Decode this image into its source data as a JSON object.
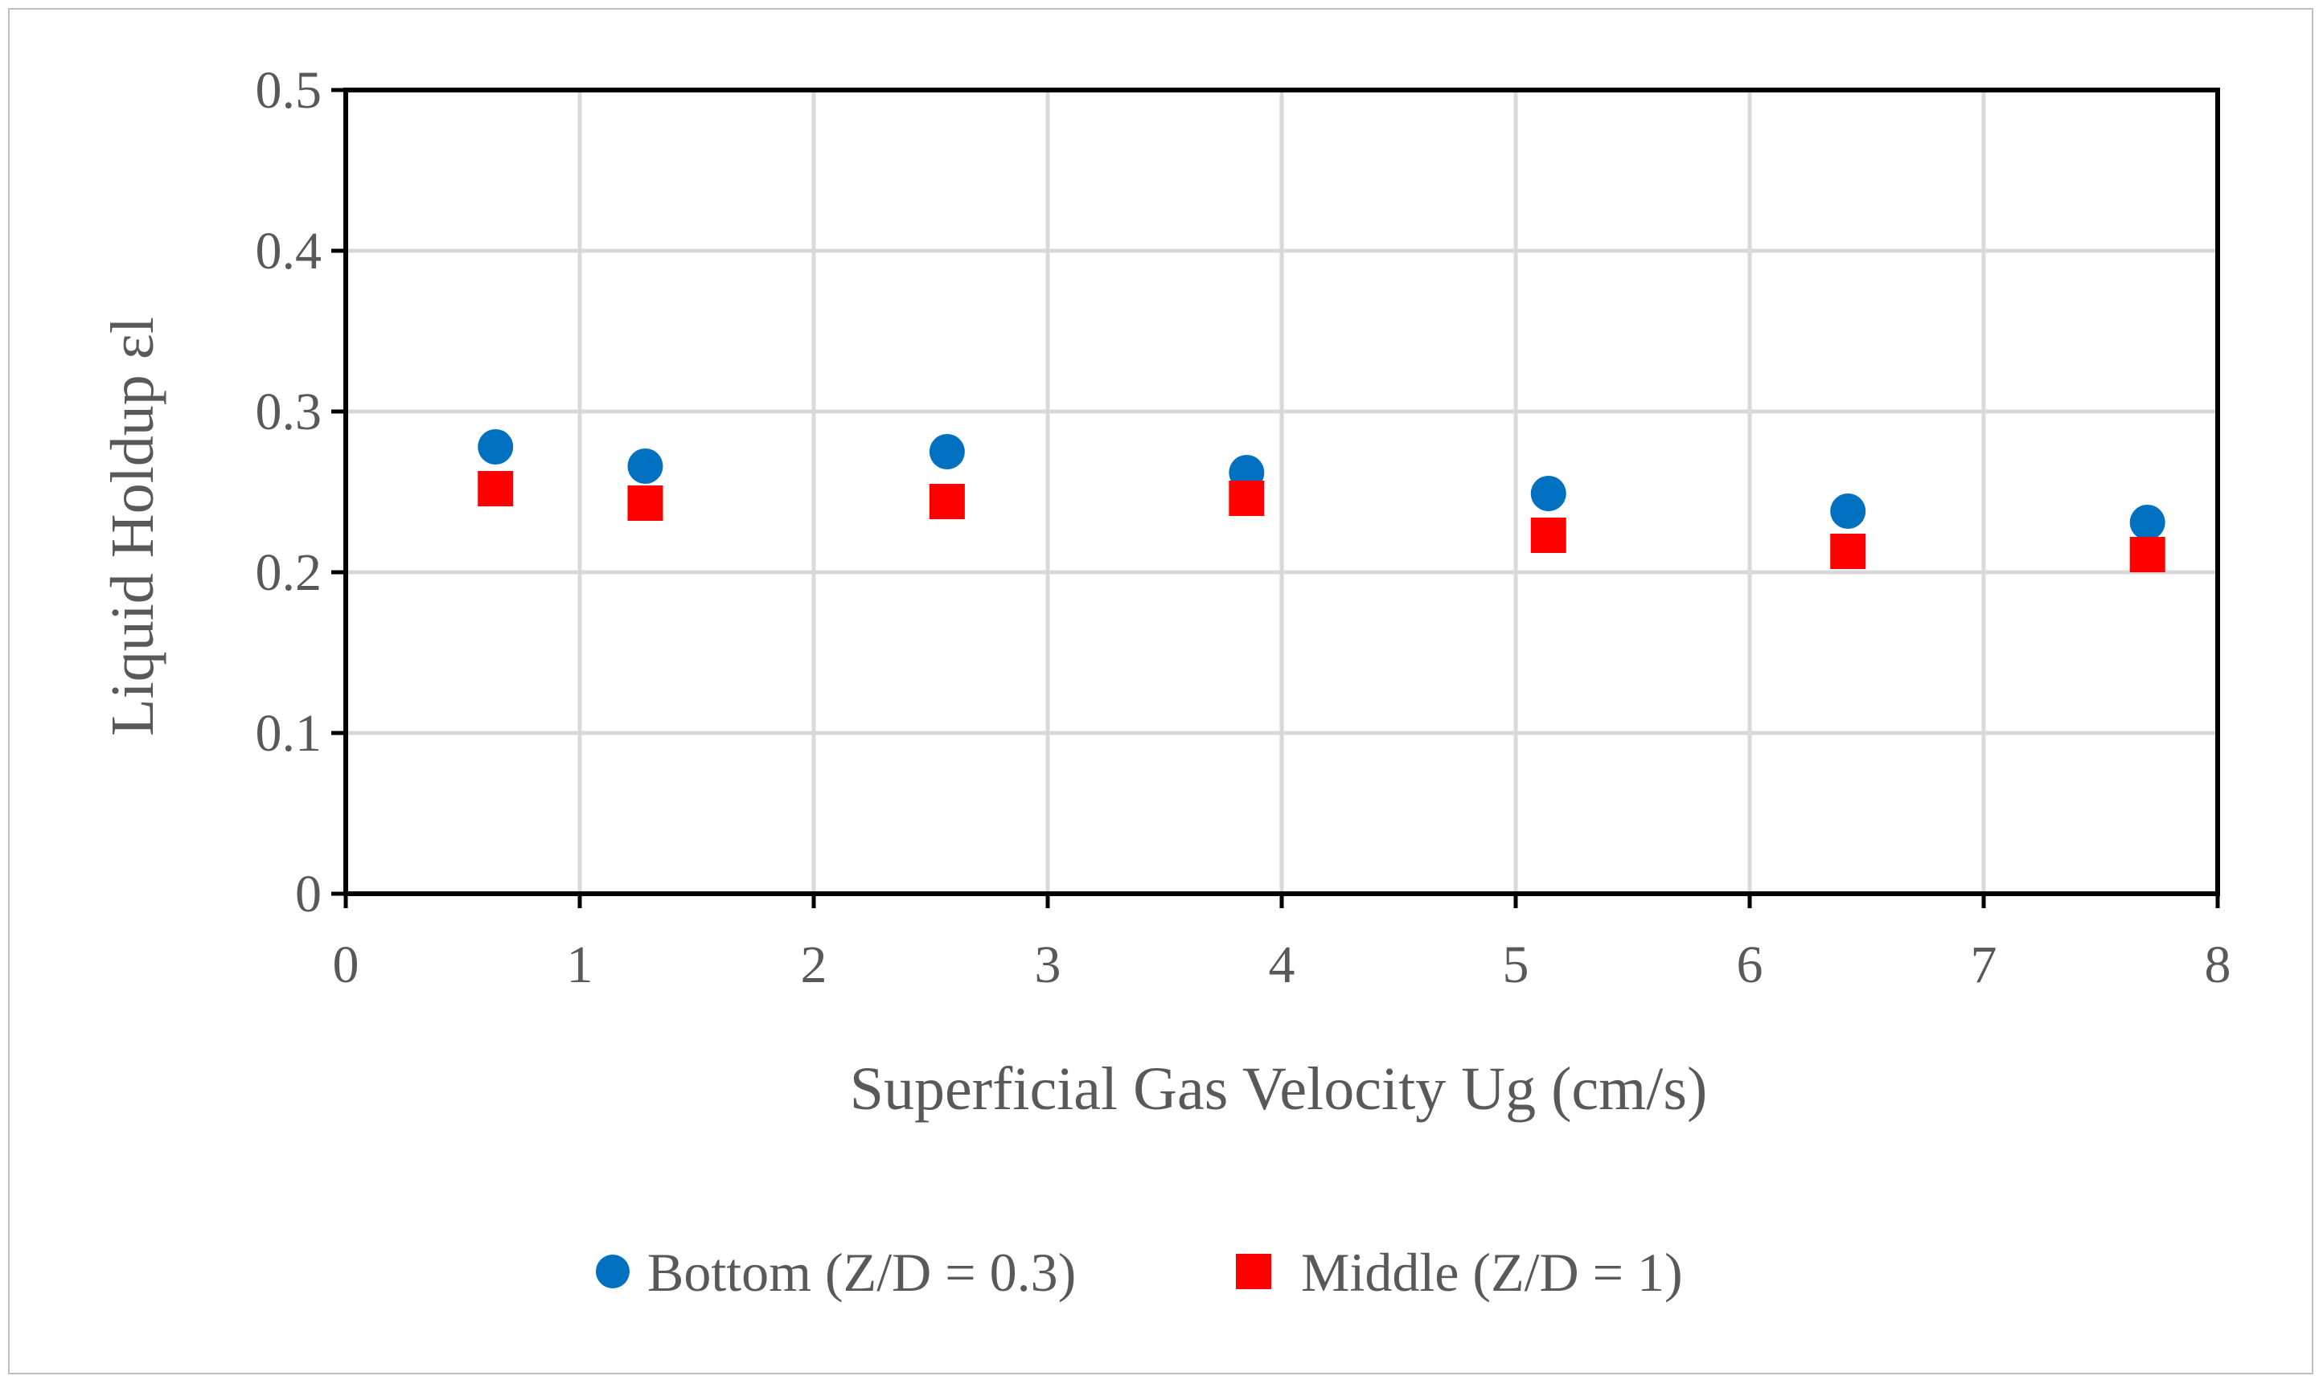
{
  "chart_data": {
    "type": "scatter",
    "title": "",
    "xlabel": "Superficial Gas Velocity Ug (cm/s)",
    "ylabel": "Liquid Holdup εl",
    "xlim": [
      0,
      8
    ],
    "ylim": [
      0,
      0.5
    ],
    "xticks": [
      0,
      1,
      2,
      3,
      4,
      5,
      6,
      7,
      8
    ],
    "yticks": [
      0,
      0.1,
      0.2,
      0.3,
      0.4,
      0.5
    ],
    "xtick_labels": [
      "0",
      "1",
      "2",
      "3",
      "4",
      "5",
      "6",
      "7",
      "8"
    ],
    "ytick_labels": [
      "0",
      "0.1",
      "0.2",
      "0.3",
      "0.4",
      "0.5"
    ],
    "grid": true,
    "legend_position": "bottom",
    "series": [
      {
        "name": "Bottom (Z/D = 0.3)",
        "marker": "circle",
        "color": "#0070C0",
        "x": [
          0.64,
          1.28,
          2.57,
          3.85,
          5.14,
          6.42,
          7.7
        ],
        "y": [
          0.278,
          0.266,
          0.275,
          0.262,
          0.249,
          0.238,
          0.231
        ]
      },
      {
        "name": "Middle (Z/D = 1)",
        "marker": "square",
        "color": "#FF0000",
        "x": [
          0.64,
          1.28,
          2.57,
          3.85,
          5.14,
          6.42,
          7.7
        ],
        "y": [
          0.252,
          0.243,
          0.244,
          0.246,
          0.223,
          0.213,
          0.211
        ]
      }
    ]
  }
}
